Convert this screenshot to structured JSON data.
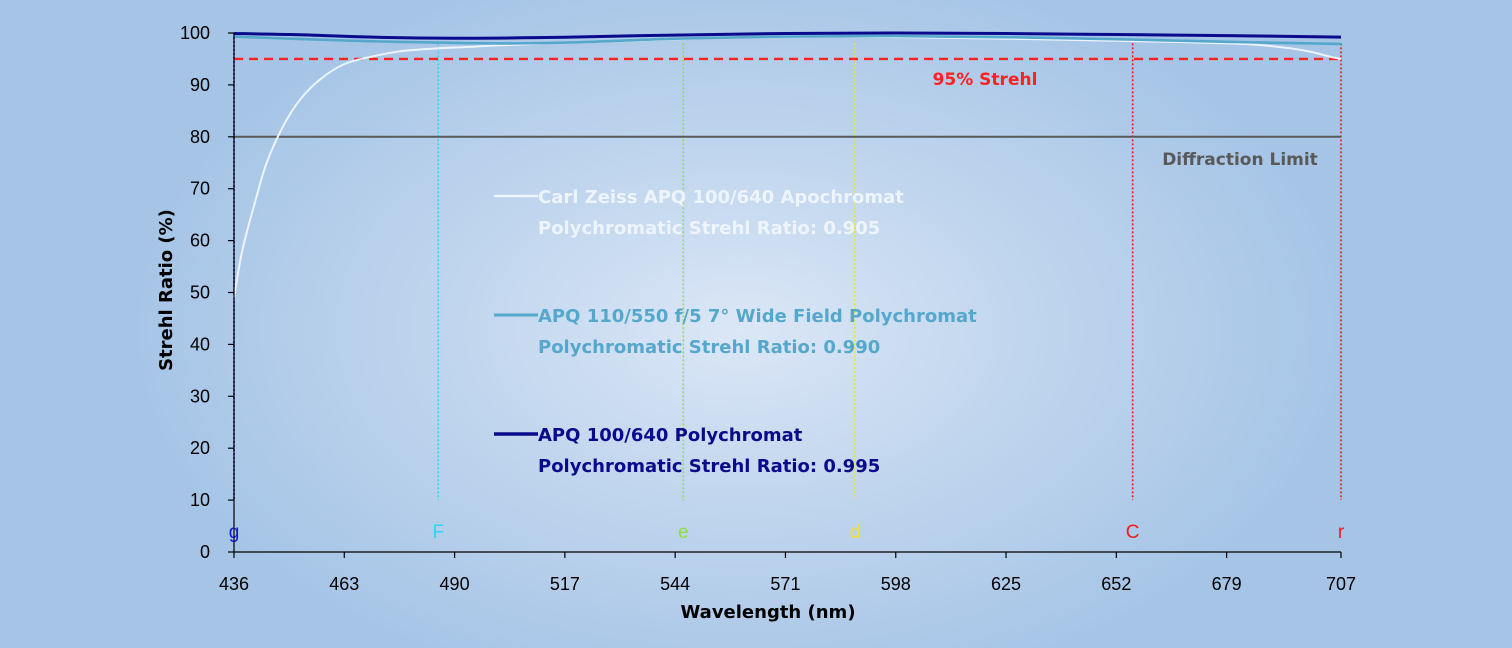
{
  "chart_data": {
    "type": "line",
    "xlabel": "Wavelength (nm)",
    "ylabel": "Strehl Ratio (%)",
    "xlim": [
      436,
      707
    ],
    "ylim": [
      0,
      100
    ],
    "xticks": [
      436,
      463,
      490,
      517,
      544,
      571,
      598,
      625,
      652,
      679,
      707
    ],
    "yticks": [
      0,
      10,
      20,
      30,
      40,
      50,
      60,
      70,
      80,
      90,
      100
    ],
    "grid": false,
    "reference_lines": [
      {
        "id": "strehl95",
        "label": "95% Strehl",
        "y": 95,
        "color": "#ff2020",
        "style": "dashed"
      },
      {
        "id": "diffraction",
        "label": "Diffraction Limit",
        "y": 80,
        "color": "#595959",
        "style": "solid"
      }
    ],
    "spectral_lines": [
      {
        "letter": "g",
        "x": 436,
        "color": "#1515d8"
      },
      {
        "letter": "F",
        "x": 486,
        "color": "#30d6f0"
      },
      {
        "letter": "e",
        "x": 546,
        "color": "#90e040"
      },
      {
        "letter": "d",
        "x": 588,
        "color": "#f5e030"
      },
      {
        "letter": "C",
        "x": 656,
        "color": "#ee1c1c"
      },
      {
        "letter": "r",
        "x": 707,
        "color": "#ee1c1c"
      }
    ],
    "series": [
      {
        "name": "Carl Zeiss APQ 100/640 Apochromat",
        "subtitle": "Polychromatic Strehl Ratio: 0.905",
        "color": "#eef4fc",
        "x": [
          436,
          438,
          441,
          444,
          448,
          452,
          457,
          463,
          470,
          477,
          485,
          493,
          500,
          510,
          525,
          544,
          560,
          580,
          600,
          625,
          652,
          670,
          685,
          695,
          700,
          704,
          707
        ],
        "y": [
          49,
          58,
          67,
          75,
          82,
          87,
          91,
          94,
          95.5,
          96.5,
          97,
          97.3,
          97.6,
          97.9,
          98.3,
          98.8,
          99.1,
          99.3,
          99.2,
          98.9,
          98.5,
          98.2,
          97.8,
          97.0,
          96.3,
          95.5,
          95.0
        ]
      },
      {
        "name": "APQ 110/550 f/5 7° Wide Field Polychromat",
        "subtitle": "Polychromatic Strehl Ratio: 0.990",
        "color": "#55a8cc",
        "x": [
          436,
          450,
          470,
          490,
          505,
          520,
          544,
          571,
          598,
          625,
          652,
          679,
          707
        ],
        "y": [
          99.3,
          98.9,
          98.4,
          98.1,
          98.0,
          98.2,
          98.9,
          99.3,
          99.4,
          99.2,
          98.8,
          98.3,
          97.9
        ]
      },
      {
        "name": "APQ 100/640 Polychromat",
        "subtitle": "Polychromatic Strehl Ratio: 0.995",
        "color": "#0a0a8c",
        "x": [
          436,
          450,
          470,
          490,
          510,
          530,
          544,
          571,
          598,
          625,
          652,
          679,
          707
        ],
        "y": [
          99.9,
          99.7,
          99.2,
          99.0,
          99.1,
          99.4,
          99.6,
          99.9,
          100.0,
          99.9,
          99.7,
          99.5,
          99.2
        ]
      }
    ]
  }
}
